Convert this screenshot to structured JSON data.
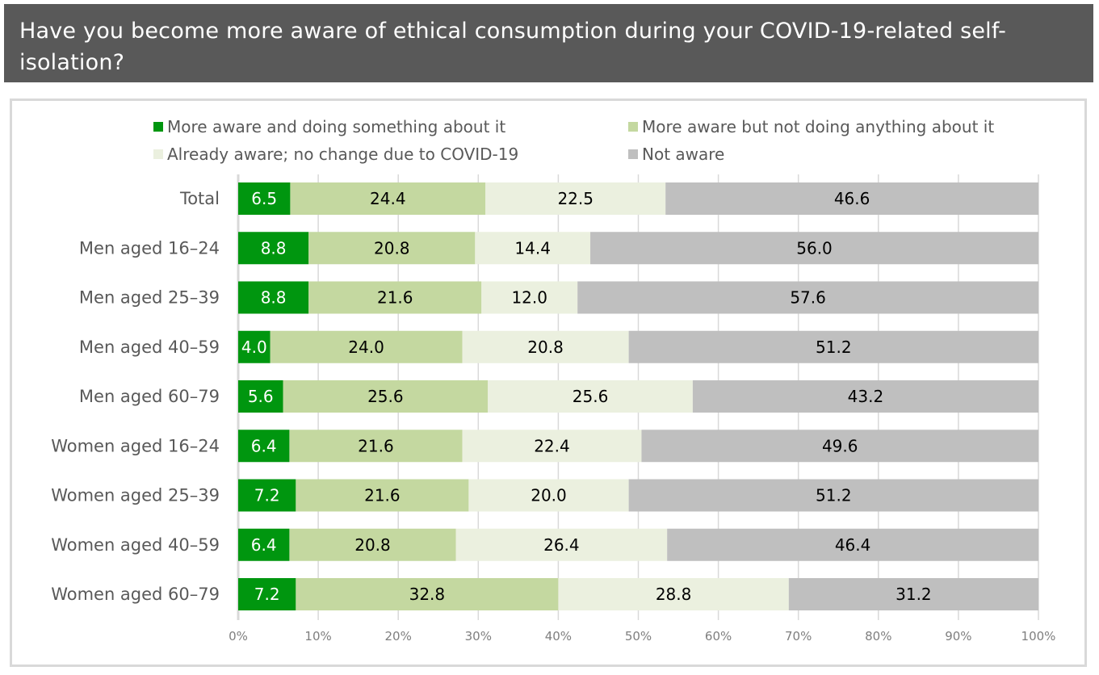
{
  "title": "Have you become more aware of ethical consumption during your COVID-19-related self-isolation?",
  "title_lines": [
    "Have you become more aware of ethical consumption during your COVID-19-related self-",
    "isolation?"
  ],
  "colors": {
    "title_background": "#595959",
    "title_text": "#ffffff",
    "frame_border": "#d9d9d9",
    "gridline": "#d9d9d9",
    "axis_text": "#7f7f7f",
    "category_text": "#595959"
  },
  "chart_data": {
    "type": "bar",
    "orientation": "horizontal",
    "stacked": true,
    "title": "Have you become more aware of ethical consumption during your COVID-19-related self-isolation?",
    "xlabel": "",
    "ylabel": "",
    "xlim": [
      0,
      100
    ],
    "x_tick_labels": [
      "0%",
      "10%",
      "20%",
      "30%",
      "40%",
      "50%",
      "60%",
      "70%",
      "80%",
      "90%",
      "100%"
    ],
    "x_ticks": [
      0,
      10,
      20,
      30,
      40,
      50,
      60,
      70,
      80,
      90,
      100
    ],
    "grid": true,
    "legend_position": "top",
    "categories": [
      "Total",
      "Men aged 16–24",
      "Men aged 25–39",
      "Men aged 40–59",
      "Men aged 60–79",
      "Women aged 16–24",
      "Women aged 25–39",
      "Women aged 40–59",
      "Women aged 60–79"
    ],
    "series": [
      {
        "name": "More aware and doing something about it",
        "color": "#00960f",
        "label_color": "#ffffff",
        "values": [
          6.5,
          8.8,
          8.8,
          4.0,
          5.6,
          6.4,
          7.2,
          6.4,
          7.2
        ]
      },
      {
        "name": "More aware but not doing anything about it",
        "color": "#c4d8a0",
        "label_color": "#000000",
        "values": [
          24.4,
          20.8,
          21.6,
          24.0,
          25.6,
          21.6,
          21.6,
          20.8,
          32.8
        ]
      },
      {
        "name": "Already aware; no change due to COVID-19",
        "color": "#ebf0df",
        "label_color": "#000000",
        "values": [
          22.5,
          14.4,
          12.0,
          20.8,
          25.6,
          22.4,
          20.0,
          26.4,
          28.8
        ]
      },
      {
        "name": "Not aware",
        "color": "#bfbfbf",
        "label_color": "#000000",
        "values": [
          46.6,
          56.0,
          57.6,
          51.2,
          43.2,
          49.6,
          51.2,
          46.4,
          31.2
        ]
      }
    ]
  }
}
